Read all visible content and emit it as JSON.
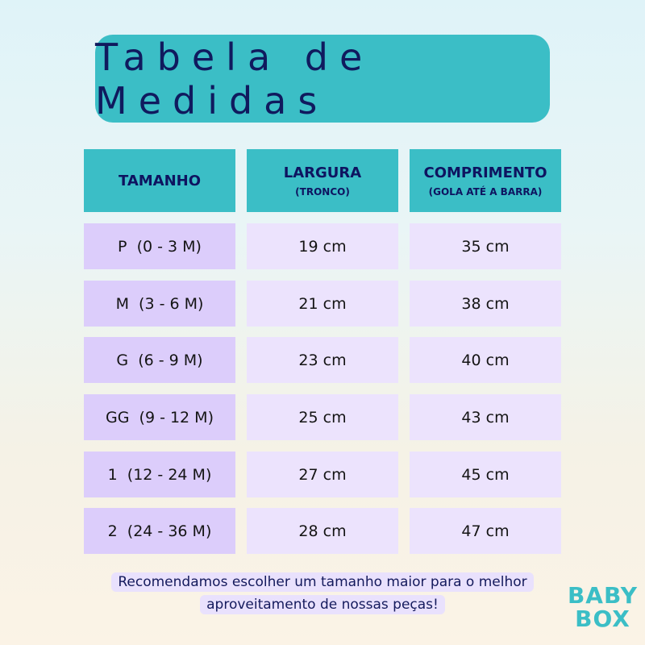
{
  "title": "Tabela de Medidas",
  "headers": [
    {
      "label": "TAMANHO",
      "sub": ""
    },
    {
      "label": "LARGURA",
      "sub": "(TRONCO)"
    },
    {
      "label": "COMPRIMENTO",
      "sub": "(GOLA ATÉ A BARRA)"
    }
  ],
  "rows": [
    [
      "P  (0 - 3 M)",
      "19 cm",
      "35 cm"
    ],
    [
      "M  (3 - 6 M)",
      "21 cm",
      "38 cm"
    ],
    [
      "G  (6 - 9 M)",
      "23 cm",
      "40 cm"
    ],
    [
      "GG  (9 - 12 M)",
      "25 cm",
      "43 cm"
    ],
    [
      "1  (12 - 24 M)",
      "27 cm",
      "45 cm"
    ],
    [
      "2  (24 - 36 M)",
      "28 cm",
      "47 cm"
    ]
  ],
  "note": {
    "line1": "Recomendamos escolher um tamanho maior para o melhor",
    "line2": "aproveitamento de nossas peças!"
  },
  "logo": {
    "line1": "BABY",
    "line2": "BOX"
  },
  "colors": {
    "accent": "#3bbec6",
    "text": "#0e1460",
    "size_cell": "#dccdfb",
    "value_cell": "#ece3fd"
  }
}
